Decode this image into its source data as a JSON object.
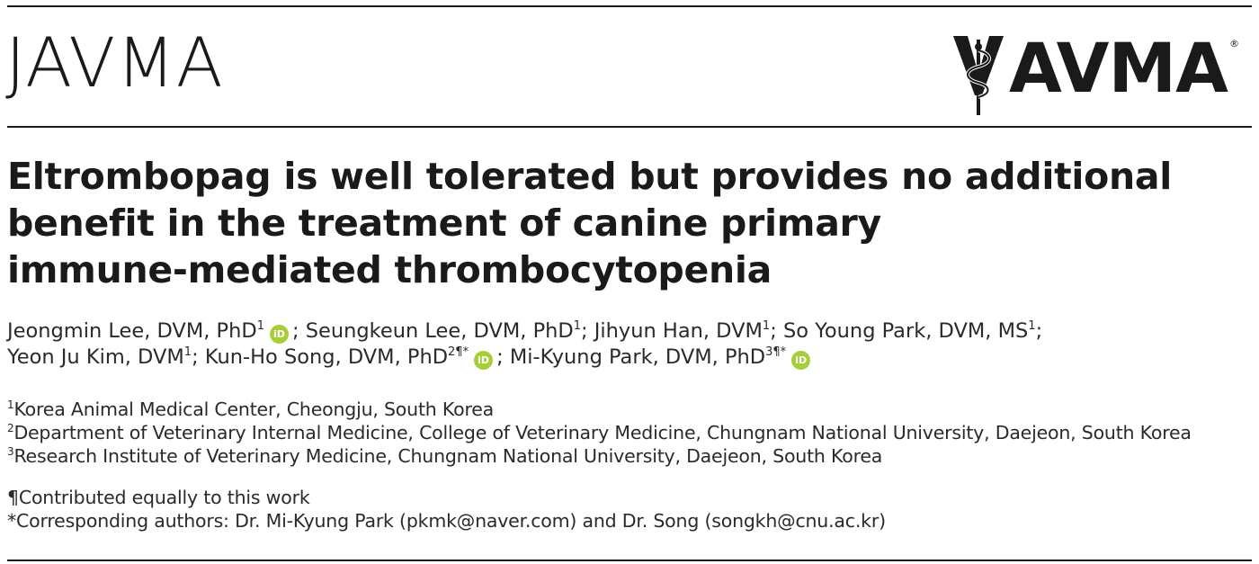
{
  "header": {
    "journal_name": "JAVMA",
    "publisher_logo_text": "AVMA",
    "registered_mark": "®"
  },
  "article": {
    "title_lines": [
      "Eltrombopag is well tolerated but provides no additional",
      "benefit in the treatment of canine primary",
      "immune-mediated thrombocytopenia"
    ]
  },
  "authors": {
    "line1": [
      {
        "name": "Jeongmin Lee, DVM, PhD",
        "sup": "1",
        "orcid": true,
        "sep": ";"
      },
      {
        "name": "Seungkeun Lee, DVM, PhD",
        "sup": "1",
        "orcid": false,
        "sep": ";"
      },
      {
        "name": "Jihyun Han, DVM",
        "sup": "1",
        "orcid": false,
        "sep": ";"
      },
      {
        "name": "So Young Park, DVM, MS",
        "sup": "1",
        "orcid": false,
        "sep": ";"
      }
    ],
    "line2": [
      {
        "name": "Yeon Ju Kim, DVM",
        "sup": "1",
        "orcid": false,
        "sep": ";"
      },
      {
        "name": "Kun-Ho Song, DVM, PhD",
        "sup": "2¶*",
        "orcid": true,
        "sep": ";"
      },
      {
        "name": "Mi-Kyung Park, DVM, PhD",
        "sup": "3¶*",
        "orcid": true,
        "sep": ""
      }
    ],
    "orcid_label": "iD"
  },
  "affiliations": [
    {
      "sup": "1",
      "text": "Korea Animal Medical Center, Cheongju, South Korea"
    },
    {
      "sup": "2",
      "text": "Department of Veterinary Internal Medicine, College of Veterinary Medicine, Chungnam National University, Daejeon, South Korea"
    },
    {
      "sup": "3",
      "text": "Research Institute of Veterinary Medicine, Chungnam National University, Daejeon, South Korea"
    }
  ],
  "notes": {
    "equal_contribution": "¶Contributed equally to this work",
    "corresponding": "*Corresponding authors: Dr. Mi-Kyung Park (pkmk@naver.com) and Dr. Song (songkh@cnu.ac.kr)"
  },
  "colors": {
    "orcid_green": "#a6ce39",
    "text": "#2a2a2a",
    "rule": "#1a1a1a"
  }
}
